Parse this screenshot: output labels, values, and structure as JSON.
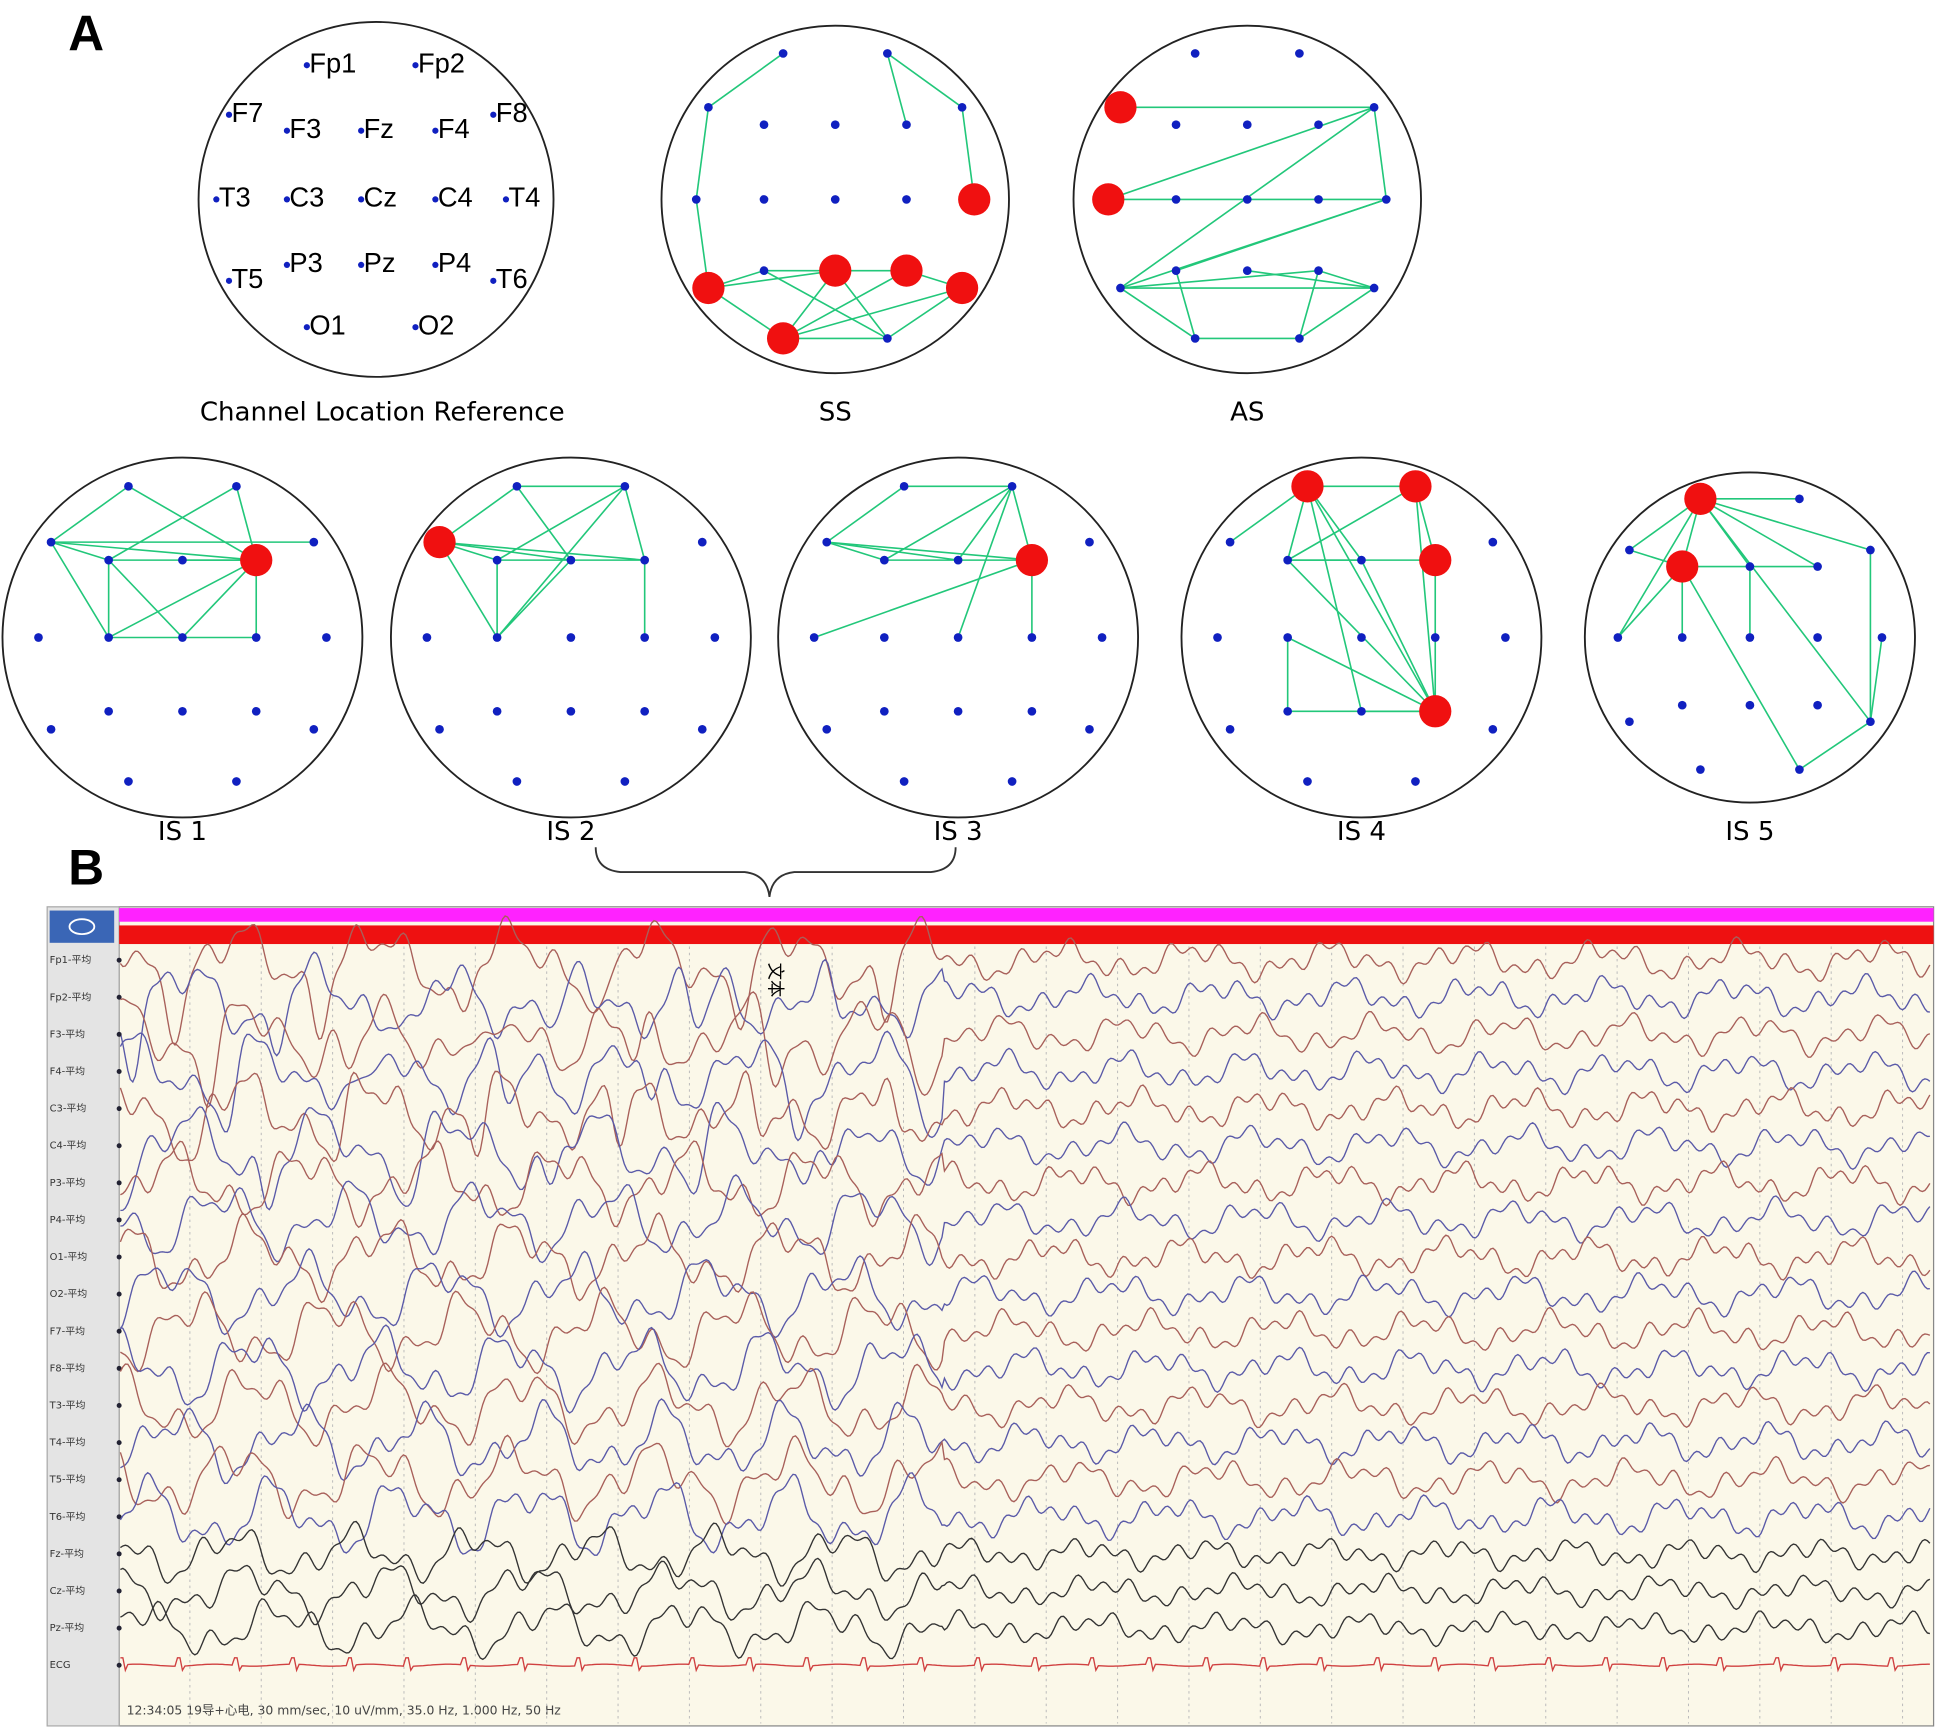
{
  "panel_a": {
    "label": "A",
    "reference": {
      "caption": "Channel Location Reference",
      "electrodes": [
        "Fp1",
        "Fp2",
        "F7",
        "F3",
        "Fz",
        "F4",
        "F8",
        "T3",
        "C3",
        "Cz",
        "C4",
        "T4",
        "T5",
        "P3",
        "Pz",
        "P4",
        "T6",
        "O1",
        "O2"
      ]
    },
    "maps": [
      {
        "caption": "SS",
        "hubs": [
          11,
          12,
          14,
          15,
          16,
          17
        ],
        "edges": [
          [
            0,
            2
          ],
          [
            2,
            7
          ],
          [
            7,
            12
          ],
          [
            1,
            5
          ],
          [
            1,
            6
          ],
          [
            6,
            11
          ],
          [
            12,
            13
          ],
          [
            12,
            17
          ],
          [
            12,
            14
          ],
          [
            13,
            14
          ],
          [
            14,
            15
          ],
          [
            15,
            16
          ],
          [
            14,
            17
          ],
          [
            15,
            17
          ],
          [
            16,
            17
          ],
          [
            13,
            18
          ],
          [
            14,
            18
          ],
          [
            17,
            18
          ],
          [
            16,
            18
          ]
        ]
      },
      {
        "caption": "AS",
        "hubs": [
          2,
          7
        ],
        "edges": [
          [
            2,
            6
          ],
          [
            6,
            11
          ],
          [
            7,
            11
          ],
          [
            7,
            6
          ],
          [
            6,
            12
          ],
          [
            11,
            12
          ],
          [
            11,
            13
          ],
          [
            12,
            15
          ],
          [
            12,
            16
          ],
          [
            12,
            17
          ],
          [
            13,
            17
          ],
          [
            15,
            18
          ],
          [
            14,
            16
          ],
          [
            15,
            16
          ],
          [
            17,
            18
          ],
          [
            16,
            18
          ]
        ]
      },
      {
        "caption": "IS 1",
        "hubs": [
          5
        ],
        "edges": [
          [
            0,
            2
          ],
          [
            0,
            5
          ],
          [
            1,
            5
          ],
          [
            1,
            3
          ],
          [
            2,
            6
          ],
          [
            2,
            3
          ],
          [
            2,
            5
          ],
          [
            3,
            8
          ],
          [
            3,
            5
          ],
          [
            2,
            8
          ],
          [
            8,
            5
          ],
          [
            4,
            5
          ],
          [
            5,
            10
          ],
          [
            9,
            5
          ],
          [
            3,
            9
          ],
          [
            8,
            10
          ]
        ]
      },
      {
        "caption": "IS 2",
        "hubs": [
          2
        ],
        "edges": [
          [
            0,
            2
          ],
          [
            0,
            4
          ],
          [
            0,
            1
          ],
          [
            1,
            3
          ],
          [
            1,
            5
          ],
          [
            1,
            8
          ],
          [
            2,
            5
          ],
          [
            2,
            3
          ],
          [
            2,
            8
          ],
          [
            3,
            4
          ],
          [
            3,
            8
          ],
          [
            4,
            8
          ],
          [
            5,
            10
          ],
          [
            4,
            5
          ],
          [
            2,
            4
          ]
        ]
      },
      {
        "caption": "IS 3",
        "hubs": [
          5
        ],
        "edges": [
          [
            0,
            2
          ],
          [
            0,
            1
          ],
          [
            1,
            3
          ],
          [
            1,
            4
          ],
          [
            1,
            9
          ],
          [
            2,
            5
          ],
          [
            2,
            3
          ],
          [
            3,
            4
          ],
          [
            4,
            5
          ],
          [
            5,
            10
          ],
          [
            7,
            5
          ],
          [
            1,
            5
          ],
          [
            2,
            4
          ]
        ]
      },
      {
        "caption": "IS 4",
        "hubs": [
          0,
          1,
          5,
          15
        ],
        "edges": [
          [
            0,
            1
          ],
          [
            0,
            2
          ],
          [
            0,
            3
          ],
          [
            0,
            4
          ],
          [
            0,
            15
          ],
          [
            0,
            14
          ],
          [
            1,
            3
          ],
          [
            1,
            5
          ],
          [
            1,
            15
          ],
          [
            3,
            5
          ],
          [
            3,
            15
          ],
          [
            4,
            15
          ],
          [
            8,
            13
          ],
          [
            8,
            15
          ],
          [
            13,
            15
          ],
          [
            5,
            15
          ],
          [
            14,
            15
          ],
          [
            3,
            4
          ]
        ]
      },
      {
        "caption": "IS 5",
        "hubs": [
          0,
          3
        ],
        "edges": [
          [
            0,
            2
          ],
          [
            0,
            3
          ],
          [
            0,
            4
          ],
          [
            0,
            5
          ],
          [
            0,
            6
          ],
          [
            0,
            1
          ],
          [
            0,
            7
          ],
          [
            2,
            3
          ],
          [
            3,
            7
          ],
          [
            3,
            5
          ],
          [
            3,
            8
          ],
          [
            4,
            9
          ],
          [
            6,
            16
          ],
          [
            0,
            16
          ],
          [
            11,
            16
          ],
          [
            3,
            18
          ],
          [
            16,
            18
          ]
        ]
      }
    ]
  },
  "panel_b": {
    "label": "B",
    "annotation": "文本",
    "channels": [
      "Fp1-平均",
      "Fp2-平均",
      "F3-平均",
      "F4-平均",
      "C3-平均",
      "C4-平均",
      "P3-平均",
      "P4-平均",
      "O1-平均",
      "O2-平均",
      "F7-平均",
      "F8-平均",
      "T3-平均",
      "T4-平均",
      "T5-平均",
      "T6-平均",
      "Fz-平均",
      "Cz-平均",
      "Pz-平均",
      "ECG"
    ],
    "footer": "12:34:05 19导+心电, 30 mm/sec, 10 uV/mm, 35.0 Hz, 1.000 Hz, 50 Hz"
  }
}
